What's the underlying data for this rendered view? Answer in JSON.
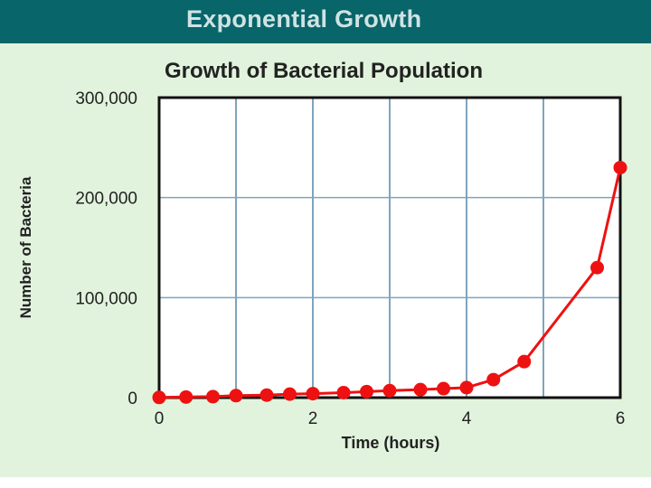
{
  "header": {
    "title": "Exponential Growth",
    "bg_color": "#08656a",
    "title_color": "#cfe3e3"
  },
  "panel": {
    "bg_color": "#e1f3dd"
  },
  "chart_data": {
    "type": "line",
    "title": "Growth of Bacterial Population",
    "xlabel": "Time (hours)",
    "ylabel": "Number of Bacteria",
    "xlim": [
      0,
      6
    ],
    "ylim": [
      0,
      300000
    ],
    "x_ticks": [
      0,
      2,
      4,
      6
    ],
    "x_tick_labels": [
      "0",
      "2",
      "4",
      "6"
    ],
    "y_ticks": [
      0,
      100000,
      200000,
      300000
    ],
    "y_tick_labels": [
      "0",
      "100,000",
      "200,000",
      "300,000"
    ],
    "grid": true,
    "legend": "none",
    "line_color": "#ee1111",
    "grid_color": "#7fa4bd",
    "series": [
      {
        "x": [
          0,
          0.35,
          0.7,
          1.0,
          1.4,
          1.7,
          2.0,
          2.4,
          2.7,
          3.0,
          3.4,
          3.7,
          4.0,
          4.35,
          4.75,
          5.7,
          6.0
        ],
        "y": [
          200,
          600,
          1000,
          2000,
          2500,
          3500,
          4000,
          5000,
          6000,
          7000,
          8000,
          9000,
          10000,
          18000,
          36000,
          130000,
          230000
        ]
      }
    ]
  }
}
